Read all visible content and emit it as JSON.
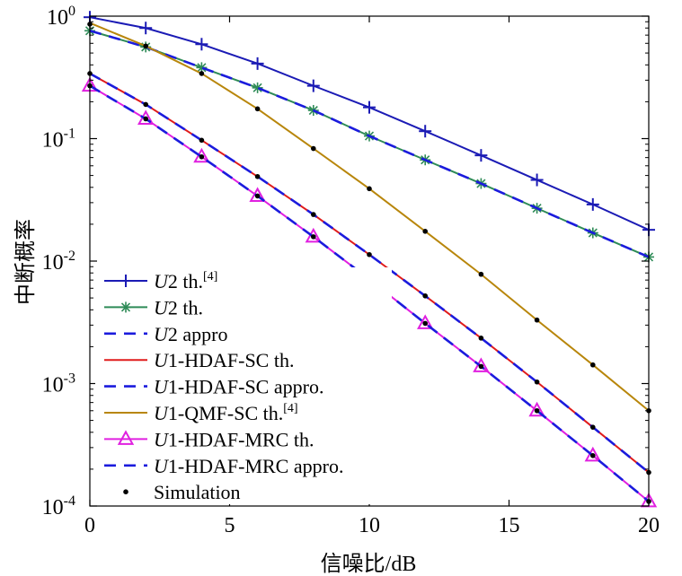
{
  "chart_data": {
    "type": "line",
    "title": "",
    "xlabel": "信噪比/dB",
    "ylabel": "中断概率",
    "xlim": [
      0,
      20
    ],
    "ylim": [
      0.0001,
      1
    ],
    "yscale": "log",
    "xticks": [
      "0",
      "5",
      "10",
      "15",
      "20"
    ],
    "yticks": [
      {
        "base": "10",
        "exp": "0"
      },
      {
        "base": "10",
        "exp": "-1"
      },
      {
        "base": "10",
        "exp": "-2"
      },
      {
        "base": "10",
        "exp": "-3"
      },
      {
        "base": "10",
        "exp": "-4"
      }
    ],
    "grid": false,
    "legend_position": "bottom-left",
    "x": [
      0,
      2,
      4,
      6,
      8,
      10,
      12,
      14,
      16,
      18,
      20
    ],
    "series": [
      {
        "key": "u2th4",
        "label": {
          "it": "U",
          "rest": "2 th.",
          "sup": "[4]"
        },
        "color": "#1b1bb5",
        "dash": false,
        "marker": "plus",
        "values": [
          0.98,
          0.8,
          0.59,
          0.41,
          0.27,
          0.18,
          0.115,
          0.073,
          0.046,
          0.029,
          0.018
        ]
      },
      {
        "key": "u2th",
        "label": {
          "it": "U",
          "rest": "2 th.",
          "sup": ""
        },
        "color": "#2e8b57",
        "dash": false,
        "marker": "star",
        "values": [
          0.76,
          0.56,
          0.38,
          0.26,
          0.17,
          0.105,
          0.067,
          0.043,
          0.027,
          0.017,
          0.0108
        ]
      },
      {
        "key": "u2appro",
        "label": {
          "it": "U",
          "rest": "2 appro",
          "sup": ""
        },
        "color": "#1b1bdd",
        "dash": true,
        "marker": "none",
        "values": [
          0.76,
          0.56,
          0.38,
          0.26,
          0.17,
          0.105,
          0.067,
          0.043,
          0.027,
          0.017,
          0.0108
        ]
      },
      {
        "key": "u1scth",
        "label": {
          "it": "U",
          "rest": "1-HDAF-SC th.",
          "sup": ""
        },
        "color": "#e01b1b",
        "dash": false,
        "marker": "none",
        "values": [
          0.34,
          0.19,
          0.097,
          0.049,
          0.024,
          0.0113,
          0.0052,
          0.00235,
          0.00103,
          0.00044,
          0.000188
        ]
      },
      {
        "key": "u1scappro",
        "label": {
          "it": "U",
          "rest": "1-HDAF-SC appro.",
          "sup": ""
        },
        "color": "#1b1bdd",
        "dash": true,
        "marker": "none",
        "values": [
          0.34,
          0.19,
          0.097,
          0.049,
          0.024,
          0.0113,
          0.0052,
          0.00235,
          0.00103,
          0.00044,
          0.000188
        ]
      },
      {
        "key": "u1qmf",
        "label": {
          "it": "U",
          "rest": "1-QMF-SC th.",
          "sup": "[4]"
        },
        "color": "#b8860b",
        "dash": false,
        "marker": "none",
        "values": [
          0.88,
          0.57,
          0.34,
          0.175,
          0.083,
          0.039,
          0.0175,
          0.0078,
          0.0033,
          0.00142,
          0.0006
        ]
      },
      {
        "key": "u1mrcth",
        "label": {
          "it": "U",
          "rest": "1-HDAF-MRC th.",
          "sup": ""
        },
        "color": "#e020e0",
        "dash": false,
        "marker": "triangle",
        "values": [
          0.27,
          0.145,
          0.071,
          0.034,
          0.0158,
          0.0071,
          0.0031,
          0.00138,
          0.0006,
          0.000258,
          0.000109
        ]
      },
      {
        "key": "u1mrcappro",
        "label": {
          "it": "U",
          "rest": "1-HDAF-MRC appro.",
          "sup": ""
        },
        "color": "#1b1bdd",
        "dash": true,
        "marker": "none",
        "values": [
          0.27,
          0.145,
          0.071,
          0.034,
          0.0158,
          0.0071,
          0.0031,
          0.00138,
          0.0006,
          0.000258,
          0.000109
        ]
      },
      {
        "key": "sim",
        "label": {
          "it": "",
          "rest": "Simulation",
          "sup": ""
        },
        "color": "#000000",
        "dash": false,
        "marker": "dot",
        "sim_points": [
          [
            0,
            0.86
          ],
          [
            2,
            0.57
          ],
          [
            4,
            0.34
          ],
          [
            6,
            0.175
          ],
          [
            8,
            0.083
          ],
          [
            10,
            0.039
          ],
          [
            12,
            0.0175
          ],
          [
            14,
            0.0078
          ],
          [
            16,
            0.0033
          ],
          [
            18,
            0.00142
          ],
          [
            20,
            0.0006
          ],
          [
            0,
            0.34
          ],
          [
            2,
            0.19
          ],
          [
            4,
            0.097
          ],
          [
            6,
            0.049
          ],
          [
            8,
            0.024
          ],
          [
            10,
            0.0113
          ],
          [
            12,
            0.0052
          ],
          [
            14,
            0.00235
          ],
          [
            16,
            0.00103
          ],
          [
            18,
            0.00044
          ],
          [
            20,
            0.000188
          ],
          [
            0,
            0.27
          ],
          [
            2,
            0.145
          ],
          [
            4,
            0.071
          ],
          [
            6,
            0.034
          ],
          [
            8,
            0.0158
          ],
          [
            10,
            0.0071
          ],
          [
            12,
            0.0031
          ],
          [
            14,
            0.00138
          ],
          [
            16,
            0.0006
          ],
          [
            18,
            0.000258
          ],
          [
            20,
            0.000109
          ]
        ]
      }
    ]
  }
}
